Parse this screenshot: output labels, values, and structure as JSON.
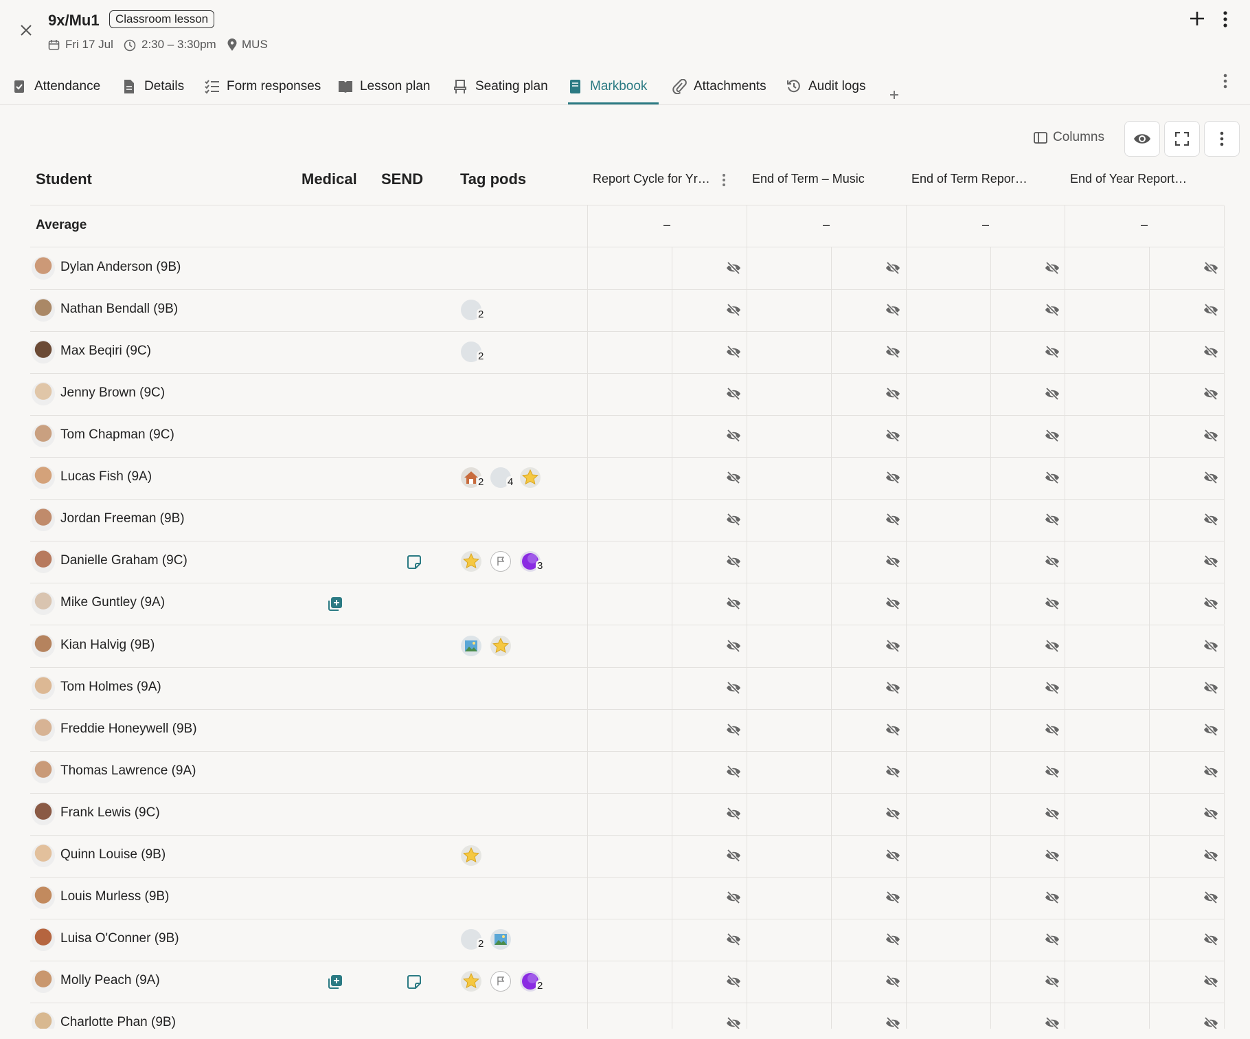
{
  "header": {
    "title": "9x/Mu1",
    "badge": "Classroom lesson",
    "date": "Fri 17 Jul",
    "time": "2:30 – 3:30pm",
    "location": "MUS"
  },
  "tabs": {
    "items": [
      "Attendance",
      "Details",
      "Form responses",
      "Lesson plan",
      "Seating plan",
      "Markbook",
      "Attachments",
      "Audit logs"
    ],
    "active": 5
  },
  "toolbar": {
    "columns": "Columns"
  },
  "table": {
    "columns": [
      "Student",
      "Medical",
      "SEND",
      "Tag pods",
      "Report Cycle for Yr…",
      "End of Term – Music",
      "End of Term Repor…",
      "End of Year Report…"
    ],
    "average": {
      "label": "Average",
      "values": [
        "–",
        "–",
        "–",
        "–"
      ]
    },
    "rows": [
      {
        "name": "Dylan Anderson (9B)",
        "medical": false,
        "send": false,
        "tags": []
      },
      {
        "name": "Nathan Bendall (9B)",
        "medical": false,
        "send": false,
        "tags": [
          {
            "kind": "grey",
            "count": 2
          }
        ]
      },
      {
        "name": "Max Beqiri (9C)",
        "medical": false,
        "send": false,
        "tags": [
          {
            "kind": "grey",
            "count": 2
          }
        ]
      },
      {
        "name": "Jenny Brown (9C)",
        "medical": false,
        "send": false,
        "tags": []
      },
      {
        "name": "Tom Chapman (9C)",
        "medical": false,
        "send": false,
        "tags": []
      },
      {
        "name": "Lucas Fish (9A)",
        "medical": false,
        "send": false,
        "tags": [
          {
            "kind": "house",
            "count": 2
          },
          {
            "kind": "grey",
            "count": 4
          },
          {
            "kind": "star"
          }
        ]
      },
      {
        "name": "Jordan Freeman (9B)",
        "medical": false,
        "send": false,
        "tags": []
      },
      {
        "name": "Danielle Graham (9C)",
        "medical": false,
        "send": true,
        "tags": [
          {
            "kind": "star"
          },
          {
            "kind": "flag"
          },
          {
            "kind": "purple",
            "count": 3
          }
        ]
      },
      {
        "name": "Mike Guntley (9A)",
        "medical": true,
        "send": false,
        "tags": []
      },
      {
        "name": "Kian Halvig (9B)",
        "medical": false,
        "send": false,
        "tags": [
          {
            "kind": "picture"
          },
          {
            "kind": "star"
          }
        ]
      },
      {
        "name": "Tom Holmes (9A)",
        "medical": false,
        "send": false,
        "tags": []
      },
      {
        "name": "Freddie Honeywell (9B)",
        "medical": false,
        "send": false,
        "tags": []
      },
      {
        "name": "Thomas Lawrence (9A)",
        "medical": false,
        "send": false,
        "tags": []
      },
      {
        "name": "Frank Lewis (9C)",
        "medical": false,
        "send": false,
        "tags": []
      },
      {
        "name": "Quinn Louise (9B)",
        "medical": false,
        "send": false,
        "tags": [
          {
            "kind": "star"
          }
        ]
      },
      {
        "name": "Louis Murless (9B)",
        "medical": false,
        "send": false,
        "tags": []
      },
      {
        "name": "Luisa O'Conner (9B)",
        "medical": false,
        "send": false,
        "tags": [
          {
            "kind": "grey",
            "count": 2
          },
          {
            "kind": "picture"
          }
        ]
      },
      {
        "name": "Molly Peach (9A)",
        "medical": true,
        "send": true,
        "tags": [
          {
            "kind": "star"
          },
          {
            "kind": "flag"
          },
          {
            "kind": "purple",
            "count": 2
          }
        ]
      },
      {
        "name": "Charlotte Phan (9B)",
        "medical": false,
        "send": false,
        "tags": []
      }
    ]
  }
}
